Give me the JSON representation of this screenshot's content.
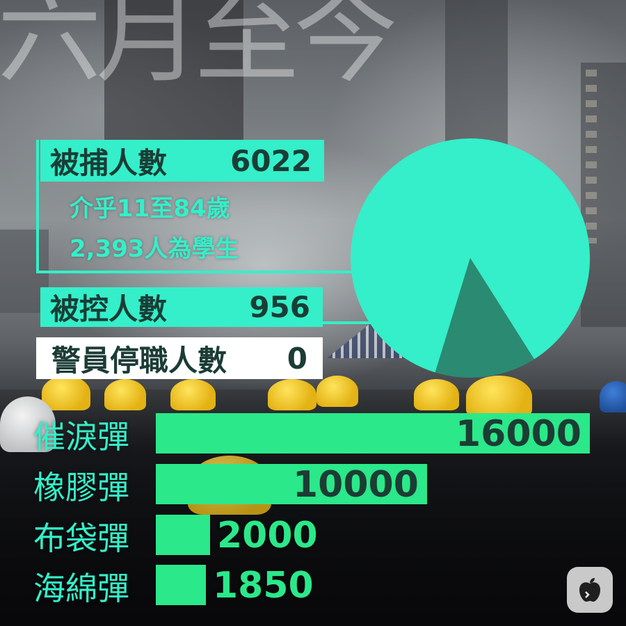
{
  "headline": "六月至今",
  "stats": {
    "arrested": {
      "label": "被捕人數",
      "value": "6022"
    },
    "age_range": "介乎11至84歲",
    "students": "2,393人為學生",
    "charged": {
      "label": "被控人數",
      "value": "956"
    },
    "police_suspended": {
      "label": "警員停職人數",
      "value": "0"
    }
  },
  "colors": {
    "accent": "#34efc9",
    "bar": "#2be88a",
    "pie_dark": "#2b8a72"
  },
  "icons": {
    "logo": "apple-logo-icon"
  },
  "chart_data": [
    {
      "type": "pie",
      "slices": [
        {
          "label": "被捕人數",
          "value": 6022
        },
        {
          "label": "被控人數",
          "value": 956
        }
      ]
    },
    {
      "type": "bar",
      "orientation": "horizontal",
      "categories": [
        "催淚彈",
        "橡膠彈",
        "布袋彈",
        "海綿彈"
      ],
      "values": [
        16000,
        10000,
        2000,
        1850
      ],
      "value_labels": [
        "16000",
        "10000",
        "2000",
        "1850"
      ],
      "xlim": [
        0,
        16000
      ]
    }
  ]
}
